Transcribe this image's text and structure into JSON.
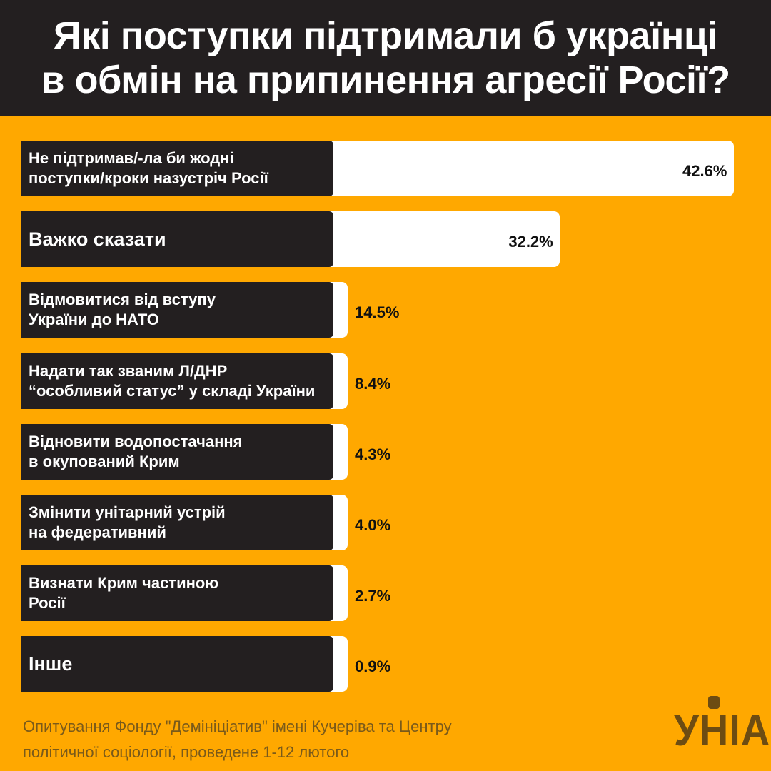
{
  "header": {
    "title_line1": "Які поступки підтримали б українці",
    "title_line2": "в обмін на припинення агресії Росії?"
  },
  "chart_data": {
    "type": "bar",
    "orientation": "horizontal",
    "unit": "%",
    "xlim": [
      0,
      42.6
    ],
    "categories": [
      "Не підтримав/-ла би жодні\nпоступки/кроки назустріч Росії",
      "Важко сказати",
      "Відмовитися від вступу\nУкраїни до НАТО",
      "Надати так званим Л/ДНР\n“особливий статус” у складі України",
      "Відновити водопостачання\nв окупований Крим",
      "Змінити унітарний устрій\nна федеративний",
      "Визнати Крим частиною\nРосії",
      "Інше"
    ],
    "values": [
      42.6,
      32.2,
      14.5,
      8.4,
      4.3,
      4.0,
      2.7,
      0.9
    ],
    "value_labels": [
      "42.6%",
      "32.2%",
      "14.5%",
      "8.4%",
      "4.3%",
      "4.0%",
      "2.7%",
      "0.9%"
    ],
    "colors": {
      "background": "#ffa800",
      "label_box": "#231f20",
      "bar": "#ffffff"
    }
  },
  "footer": {
    "source_line1": "Опитування Фонду \"Демініціатив\" імені Кучеріва та Центру",
    "source_line2": "політичної соціології, проведене 1-12 лютого"
  },
  "logo": {
    "text": "УНІАН"
  }
}
